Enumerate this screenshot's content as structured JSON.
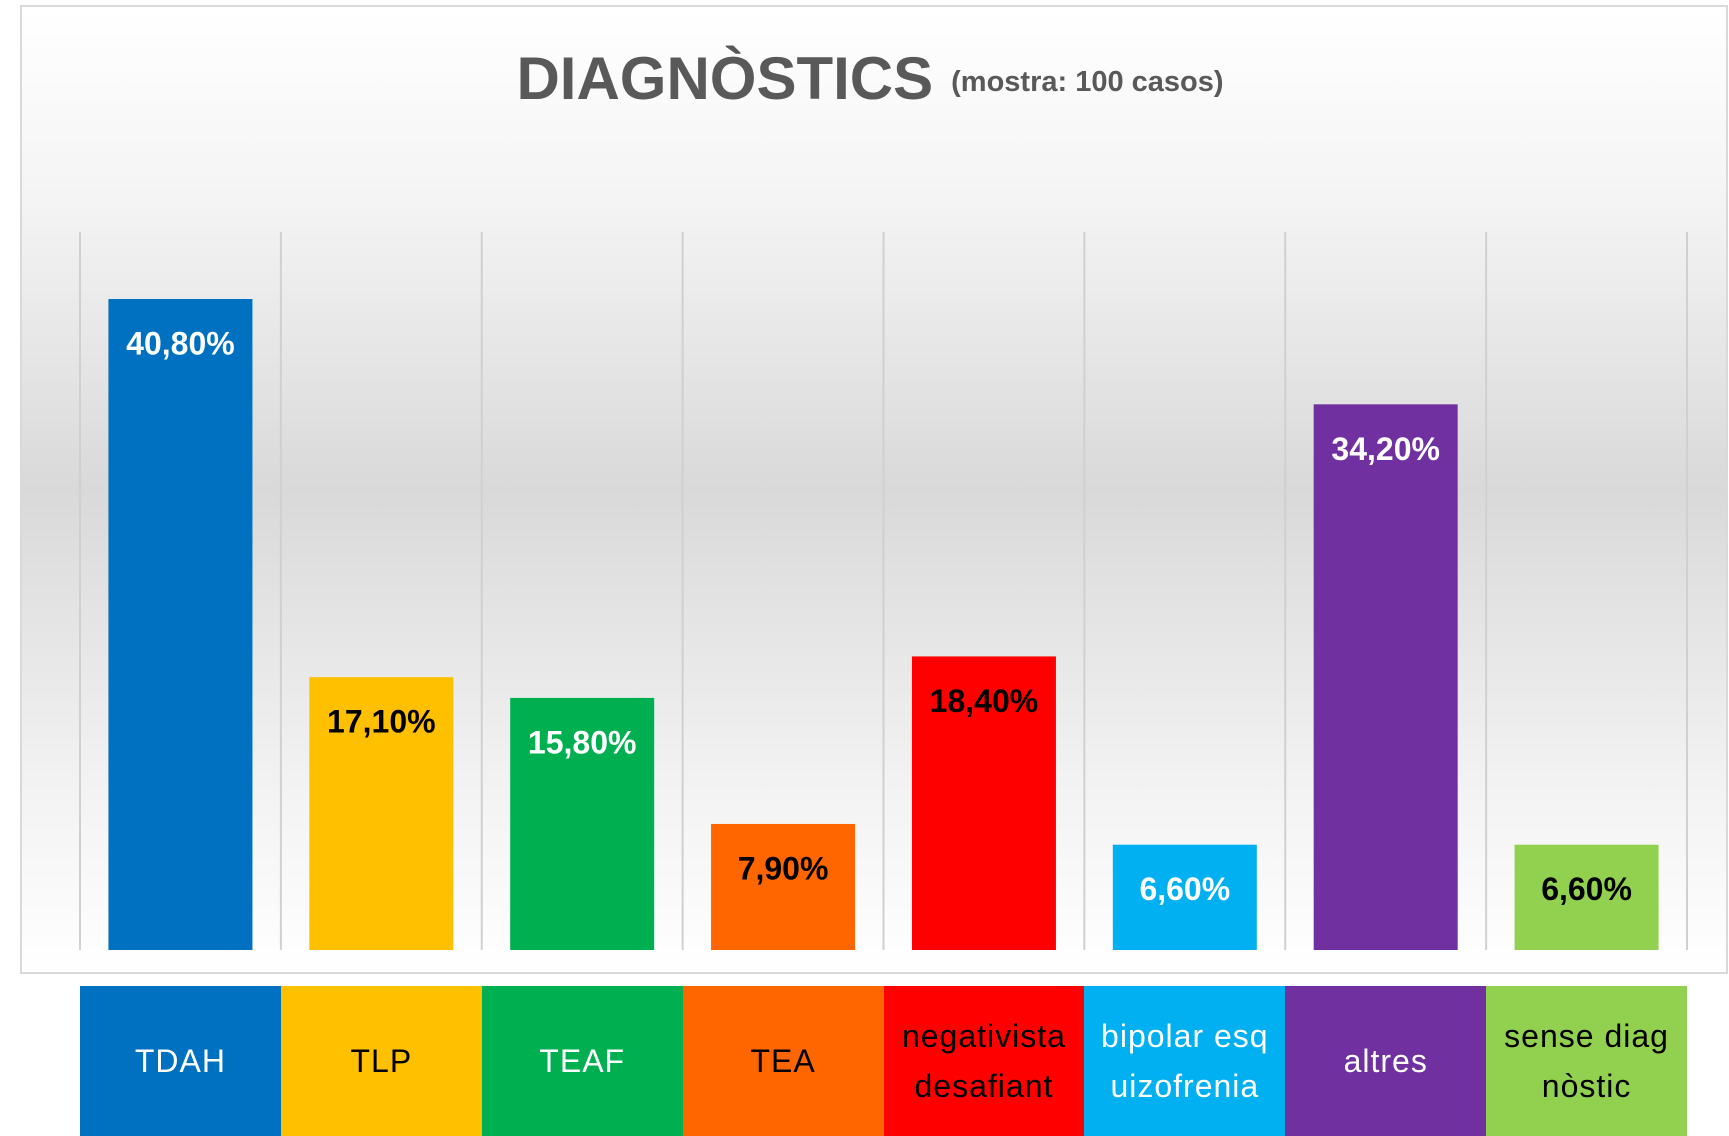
{
  "chart_data": {
    "type": "bar",
    "title": "DIAGNÒSTICS",
    "subtitle": "(mostra: 100 casos)",
    "categories": [
      "TDAH",
      "TLP",
      "TEAF",
      "TEA",
      "negativista desafiant",
      "bipolar esquizofrenia",
      "altres",
      "sense diagnòstic"
    ],
    "values": [
      40.8,
      17.1,
      15.8,
      7.9,
      18.4,
      6.6,
      34.2,
      6.6
    ],
    "value_labels": [
      "40,80%",
      "17,10%",
      "15,80%",
      "7,90%",
      "18,40%",
      "6,60%",
      "34,20%",
      "6,60%"
    ],
    "colors": [
      "#0070c0",
      "#ffc000",
      "#00b050",
      "#ff6600",
      "#ff0000",
      "#00b0f0",
      "#7030a0",
      "#92d050"
    ],
    "label_colors": [
      "#ffffff",
      "#000000",
      "#ffffff",
      "#000000",
      "#000000",
      "#ffffff",
      "#ffffff",
      "#000000"
    ],
    "ylim": [
      0,
      45
    ],
    "grid": true
  }
}
